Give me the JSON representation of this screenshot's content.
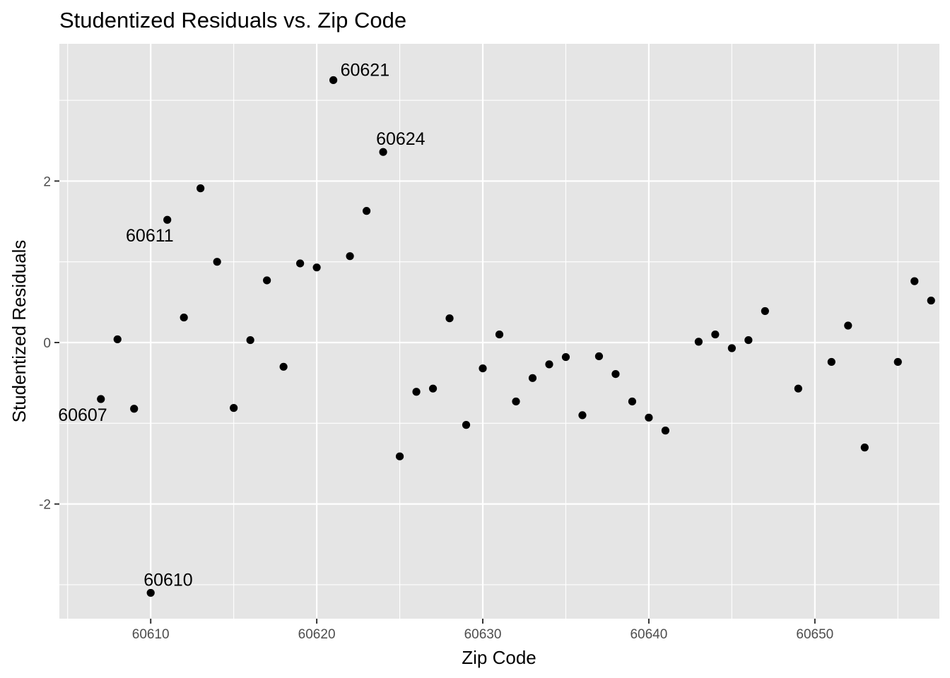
{
  "chart_data": {
    "type": "scatter",
    "title": "Studentized Residuals vs. Zip Code",
    "xlabel": "Zip Code",
    "ylabel": "Studentized Residuals",
    "xlim": [
      60604.5,
      60657.5
    ],
    "ylim": [
      -3.42,
      3.7
    ],
    "x_ticks": [
      60610,
      60620,
      60630,
      60640,
      60650
    ],
    "y_ticks": [
      -2,
      0,
      2
    ],
    "x_tick_labels": [
      "60610",
      "60620",
      "60630",
      "60640",
      "60650"
    ],
    "y_tick_labels": [
      "-2",
      "0",
      "2"
    ],
    "grid": true,
    "legend": "none",
    "point_color": "#000000",
    "panel_color": "#e5e5e5",
    "grid_color": "#ffffff",
    "points": [
      {
        "x": 60607,
        "y": -0.7
      },
      {
        "x": 60608,
        "y": 0.04
      },
      {
        "x": 60609,
        "y": -0.82
      },
      {
        "x": 60610,
        "y": -3.1
      },
      {
        "x": 60611,
        "y": 1.52
      },
      {
        "x": 60612,
        "y": 0.31
      },
      {
        "x": 60613,
        "y": 1.91
      },
      {
        "x": 60614,
        "y": 1.0
      },
      {
        "x": 60615,
        "y": -0.81
      },
      {
        "x": 60616,
        "y": 0.03
      },
      {
        "x": 60617,
        "y": 0.77
      },
      {
        "x": 60618,
        "y": -0.3
      },
      {
        "x": 60619,
        "y": 0.98
      },
      {
        "x": 60620,
        "y": 0.93
      },
      {
        "x": 60621,
        "y": 3.25
      },
      {
        "x": 60622,
        "y": 1.07
      },
      {
        "x": 60623,
        "y": 1.63
      },
      {
        "x": 60624,
        "y": 2.36
      },
      {
        "x": 60625,
        "y": -1.41
      },
      {
        "x": 60626,
        "y": -0.61
      },
      {
        "x": 60627,
        "y": -0.57
      },
      {
        "x": 60628,
        "y": 0.3
      },
      {
        "x": 60629,
        "y": -1.02
      },
      {
        "x": 60630,
        "y": -0.32
      },
      {
        "x": 60631,
        "y": 0.1
      },
      {
        "x": 60632,
        "y": -0.73
      },
      {
        "x": 60633,
        "y": -0.44
      },
      {
        "x": 60634,
        "y": -0.27
      },
      {
        "x": 60635,
        "y": -0.18
      },
      {
        "x": 60636,
        "y": -0.9
      },
      {
        "x": 60637,
        "y": -0.17
      },
      {
        "x": 60638,
        "y": -0.39
      },
      {
        "x": 60639,
        "y": -0.73
      },
      {
        "x": 60640,
        "y": -0.93
      },
      {
        "x": 60641,
        "y": -1.09
      },
      {
        "x": 60643,
        "y": 0.01
      },
      {
        "x": 60644,
        "y": 0.1
      },
      {
        "x": 60645,
        "y": -0.07
      },
      {
        "x": 60646,
        "y": 0.03
      },
      {
        "x": 60647,
        "y": 0.39
      },
      {
        "x": 60649,
        "y": -0.57
      },
      {
        "x": 60651,
        "y": -0.24
      },
      {
        "x": 60652,
        "y": 0.21
      },
      {
        "x": 60653,
        "y": -1.3
      },
      {
        "x": 60655,
        "y": -0.24
      },
      {
        "x": 60656,
        "y": 0.76
      },
      {
        "x": 60657,
        "y": 0.52
      }
    ],
    "annotations": [
      {
        "text": "60621",
        "x": 60621,
        "y": 3.25,
        "position": "right"
      },
      {
        "text": "60624",
        "x": 60624,
        "y": 2.36,
        "position": "above"
      },
      {
        "text": "60611",
        "x": 60611,
        "y": 1.52,
        "position": "below-left"
      },
      {
        "text": "60607",
        "x": 60607,
        "y": -0.7,
        "position": "below-left"
      },
      {
        "text": "60610",
        "x": 60610,
        "y": -3.1,
        "position": "above-right"
      }
    ]
  }
}
